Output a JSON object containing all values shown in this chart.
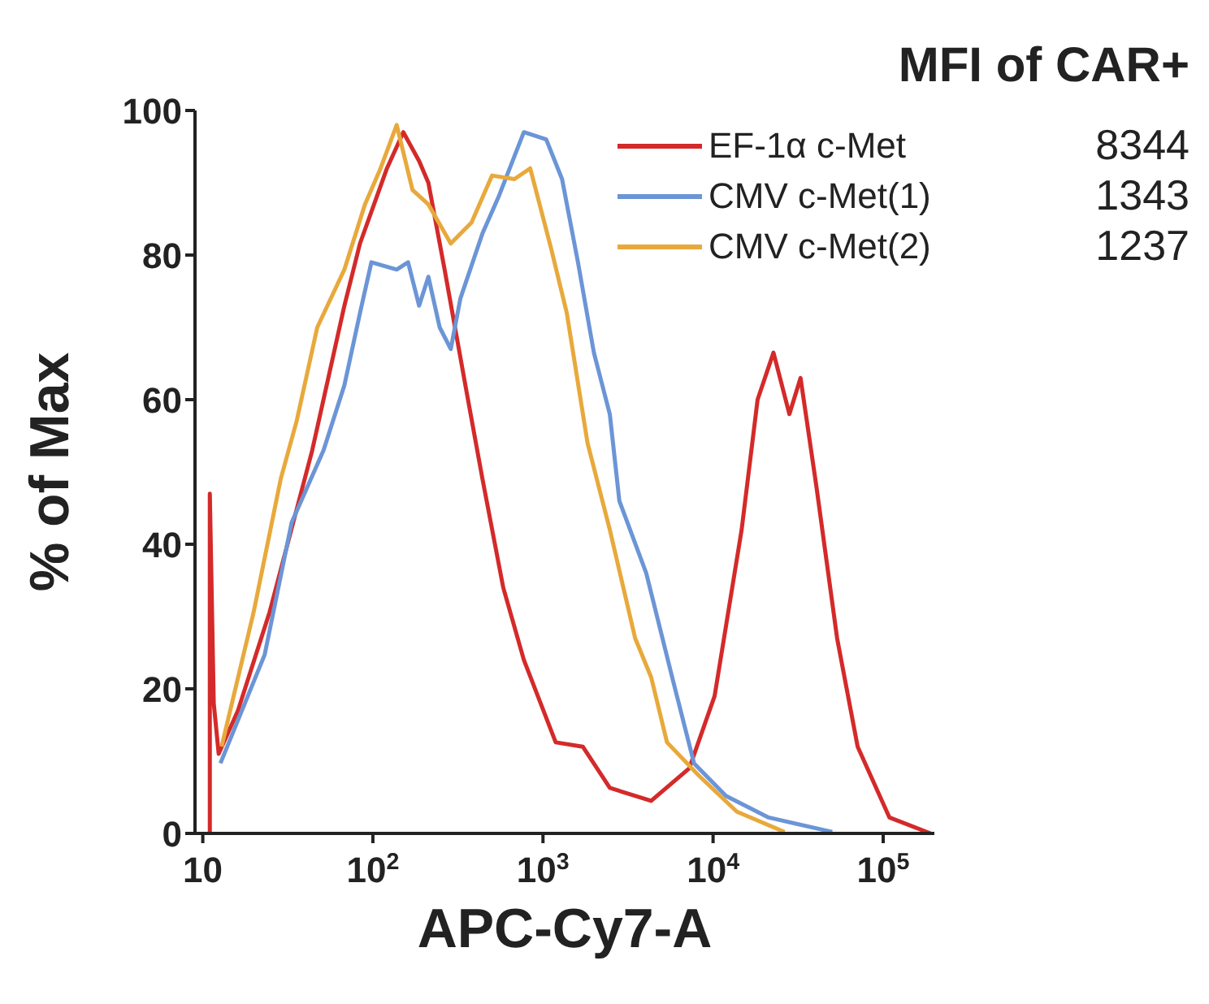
{
  "chart_data": {
    "type": "line",
    "xlabel": "APC-Cy7-A",
    "ylabel": "% of Max",
    "legend_title": "MFI of CAR+",
    "annotations": [
      "8344",
      "1343",
      "1237"
    ],
    "log": "x",
    "xlim": [
      9,
      200000
    ],
    "ylim": [
      0,
      100
    ],
    "xticks": [
      {
        "value": 10,
        "label": "10"
      },
      {
        "value": 100,
        "label": "10$^{2}$"
      },
      {
        "value": 1000,
        "label": "10$^{3}$"
      },
      {
        "value": 10000,
        "label": "10$^{4}$"
      },
      {
        "value": 100000,
        "label": "10$^{5}$"
      }
    ],
    "yticks": [
      0,
      20,
      40,
      60,
      80,
      100
    ],
    "grid": false,
    "legend": "top right",
    "marker": "none",
    "line_style": "solid",
    "series": [
      {
        "name": "EF-1α c-Met",
        "color": "#d42a2a",
        "x": [
          11,
          11,
          11.6,
          12.4,
          16.1,
          24.7,
          44,
          68,
          84,
          121,
          151,
          187,
          212,
          264,
          356,
          441,
          584,
          772,
          1188,
          1714,
          2471,
          4325,
          7244,
          10210,
          14720,
          18270,
          22650,
          28100,
          32680,
          40500,
          53600,
          70800,
          108900,
          190000
        ],
        "values": [
          0,
          47,
          18,
          11,
          17,
          30.6,
          53,
          73,
          81.6,
          92,
          97,
          93,
          90,
          78,
          61,
          49,
          34,
          24,
          12.6,
          12,
          6.3,
          4.5,
          9,
          19,
          42,
          60,
          66.5,
          58,
          63,
          48,
          27,
          12,
          2.2,
          0
        ]
      },
      {
        "name": "CMV c-Met(1)",
        "color": "#6b95d6",
        "x": [
          12.7,
          23.1,
          33.3,
          51.3,
          68,
          84,
          98,
          138,
          161,
          187,
          212,
          247,
          287,
          327,
          441,
          547,
          772,
          1045,
          1295,
          1606,
          1992,
          2471,
          2812,
          4047,
          5834,
          7727,
          11890,
          21230,
          50200
        ],
        "values": [
          9.7,
          24.7,
          43,
          53,
          62,
          72,
          79,
          78,
          79,
          73,
          77,
          70,
          67,
          74,
          83,
          88,
          97,
          96,
          90.5,
          79,
          66.5,
          58,
          46,
          36,
          21,
          9.7,
          5.2,
          2.2,
          0.2
        ]
      },
      {
        "name": "CMV c-Met(2)",
        "color": "#e8a93c",
        "x": [
          12.9,
          19.9,
          28.7,
          35.6,
          47.1,
          68,
          89.8,
          111,
          138,
          171,
          212,
          287,
          380,
          502,
          679,
          841,
          1114,
          1380,
          1828,
          2471,
          3483,
          4325,
          5360,
          8241,
          13800,
          26360
        ],
        "values": [
          12,
          30.6,
          49,
          57,
          70,
          78,
          87,
          92,
          98,
          89,
          87,
          81.6,
          84.5,
          91,
          90.5,
          92,
          81,
          72,
          54,
          42,
          27,
          21.6,
          12.6,
          8,
          3,
          0.2
        ]
      }
    ]
  }
}
